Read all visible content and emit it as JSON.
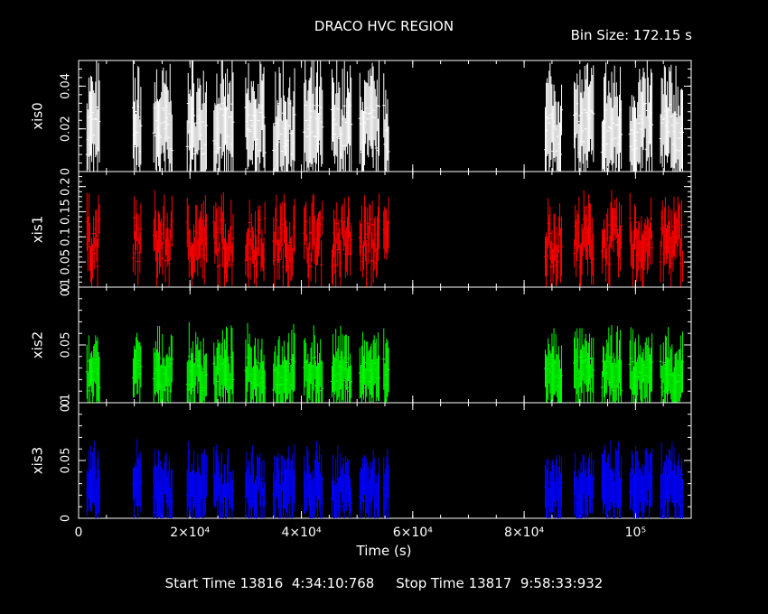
{
  "title": "DRACO HVC REGION",
  "bin_size_text": "Bin Size: 172.15 s",
  "footer": {
    "start_label": "Start Time",
    "start_value": "13816  4:34:10:768",
    "stop_label": "Stop Time",
    "stop_value": "13817  9:58:33:932"
  },
  "chart_data": {
    "type": "line",
    "xlabel": "Time (s)",
    "xlim": [
      0,
      110000
    ],
    "x_ticks": [
      {
        "value": 0,
        "label": "0"
      },
      {
        "value": 20000,
        "label": "2×10⁴"
      },
      {
        "value": 40000,
        "label": "4×10⁴"
      },
      {
        "value": 60000,
        "label": "6×10⁴"
      },
      {
        "value": 80000,
        "label": "8×10⁴"
      },
      {
        "value": 100000,
        "label": "10⁵"
      }
    ],
    "panels": [
      {
        "name": "xis0",
        "color": "#ffffff",
        "ylim": [
          0,
          0.052
        ],
        "y_ticks": [
          {
            "value": 0,
            "label": "0"
          },
          {
            "value": 0.02,
            "label": "0.02"
          },
          {
            "value": 0.04,
            "label": "0.04"
          }
        ],
        "level": 0.02,
        "amp": 0.012,
        "errmax": 0.025
      },
      {
        "name": "xis1",
        "color": "#ff0000",
        "ylim": [
          0,
          0.23
        ],
        "y_ticks": [
          {
            "value": 0,
            "label": "0"
          },
          {
            "value": 0.05,
            "label": "0.05"
          },
          {
            "value": 0.1,
            "label": "0.1"
          },
          {
            "value": 0.15,
            "label": "0.15"
          },
          {
            "value": 0.2,
            "label": "0.2"
          }
        ],
        "level": 0.09,
        "amp": 0.05,
        "errmax": 0.06
      },
      {
        "name": "xis2",
        "color": "#00ff00",
        "ylim": [
          0,
          0.1
        ],
        "y_ticks": [
          {
            "value": 0,
            "label": "0"
          },
          {
            "value": 0.05,
            "label": "0.05"
          },
          {
            "value": 0.1,
            "label": "0.1"
          }
        ],
        "level": 0.025,
        "amp": 0.015,
        "errmax": 0.03
      },
      {
        "name": "xis3",
        "color": "#0000ff",
        "ylim": [
          0,
          0.1
        ],
        "y_ticks": [
          {
            "value": 0,
            "label": "0"
          },
          {
            "value": 0.05,
            "label": "0.05"
          },
          {
            "value": 0.1,
            "label": "0.1"
          }
        ],
        "level": 0.025,
        "amp": 0.015,
        "errmax": 0.03
      }
    ],
    "segments": [
      [
        1500,
        3800
      ],
      [
        9800,
        11200
      ],
      [
        13500,
        16800
      ],
      [
        19500,
        23000
      ],
      [
        24300,
        27800
      ],
      [
        30000,
        33500
      ],
      [
        35000,
        38800
      ],
      [
        40500,
        43800
      ],
      [
        45500,
        49000
      ],
      [
        50500,
        54000
      ],
      [
        54800,
        55800
      ],
      [
        83800,
        86800
      ],
      [
        89000,
        92500
      ],
      [
        94000,
        97600
      ],
      [
        99000,
        103000
      ],
      [
        104500,
        108500
      ]
    ]
  }
}
